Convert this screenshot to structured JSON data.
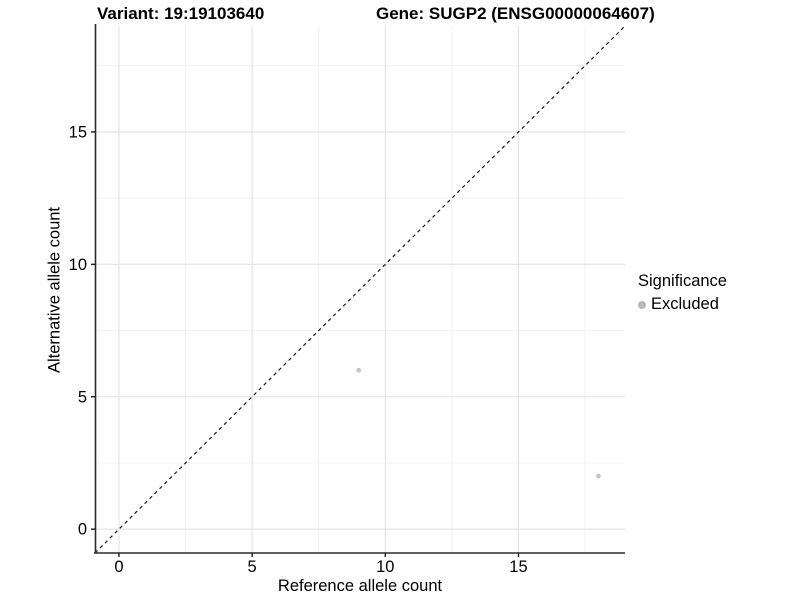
{
  "chart_data": {
    "type": "scatter",
    "titles": [
      {
        "label": "Variant: 19:19103640"
      },
      {
        "label": "Gene: SUGP2 (ENSG00000064607)"
      }
    ],
    "xlabel": "Reference allele count",
    "ylabel": "Alternative allele count",
    "xlim": [
      -0.9,
      19.0
    ],
    "ylim": [
      -0.9,
      19.0
    ],
    "x_ticks": [
      0,
      5,
      10,
      15
    ],
    "y_ticks": [
      0,
      5,
      10,
      15
    ],
    "x_minor_ticks": [
      2.5,
      7.5,
      12.5,
      17.5
    ],
    "y_minor_ticks": [
      2.5,
      7.5,
      12.5,
      17.5
    ],
    "grid": "major+minor",
    "reference_line": {
      "type": "identity",
      "style": "dashed",
      "color": "#1a1a1a"
    },
    "series": [
      {
        "name": "Excluded",
        "marker": "circle",
        "color": "#c4c4c4",
        "points": [
          [
            9,
            6
          ],
          [
            18,
            2
          ]
        ]
      }
    ],
    "legend": {
      "title": "Significance",
      "position": "right",
      "entries": [
        {
          "label": "Excluded",
          "color": "#b9b9b9"
        }
      ]
    }
  },
  "colors": {
    "grid_major": "#e2e2e2",
    "grid_minor": "#f0f0f0",
    "axis_line": "#2b2b2b",
    "tick_mark": "#1a1a1a"
  }
}
